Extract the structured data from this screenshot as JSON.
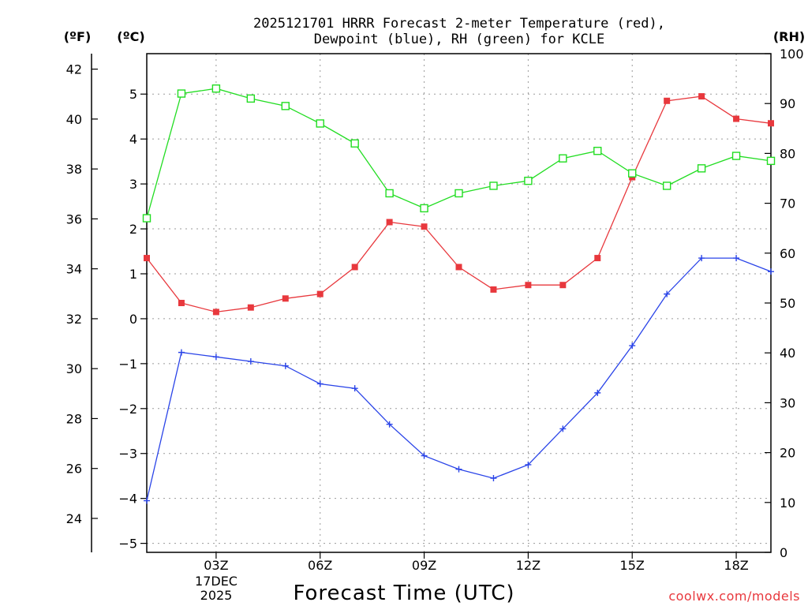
{
  "chart_data": {
    "type": "line",
    "title_line1": "2025121701 HRRR Forecast 2-meter Temperature (red),",
    "title_line2": "Dewpoint (blue), RH (green) for KCLE",
    "xlabel": "Forecast Time (UTC)",
    "credit": "coolwx.com/models",
    "date_labels": [
      "17DEC",
      "2025"
    ],
    "unit_labels": {
      "fahrenheit": "(ºF)",
      "celsius": "(ºC)",
      "rh": "(RH)"
    },
    "x_range": [
      0,
      18
    ],
    "x_ticks": [
      {
        "x": 2,
        "label": "03Z"
      },
      {
        "x": 5,
        "label": "06Z"
      },
      {
        "x": 8,
        "label": "09Z"
      },
      {
        "x": 11,
        "label": "12Z"
      },
      {
        "x": 14,
        "label": "15Z"
      },
      {
        "x": 17,
        "label": "18Z"
      }
    ],
    "celsius_range": [
      -5.2,
      5.9
    ],
    "celsius_ticks": [
      -5,
      -4,
      -3,
      -2,
      -1,
      0,
      1,
      2,
      3,
      4,
      5
    ],
    "fahrenheit_ticks": [
      24,
      26,
      28,
      30,
      32,
      34,
      36,
      38,
      40,
      42
    ],
    "rh_range": [
      0,
      100
    ],
    "rh_ticks": [
      0,
      10,
      20,
      30,
      40,
      50,
      60,
      70,
      80,
      90,
      100
    ],
    "series": [
      {
        "name": "Temperature",
        "color": "#e8383d",
        "marker": "filled-square",
        "axis": "celsius",
        "values": [
          1.35,
          0.35,
          0.15,
          0.25,
          0.45,
          0.55,
          1.15,
          2.15,
          2.05,
          1.15,
          0.65,
          0.75,
          0.75,
          1.35,
          3.15,
          4.85,
          4.95,
          4.45,
          4.35
        ]
      },
      {
        "name": "Dewpoint",
        "color": "#2a44e8",
        "marker": "plus",
        "axis": "celsius",
        "values": [
          -4.05,
          -0.75,
          -0.85,
          -0.95,
          -1.05,
          -1.45,
          -1.55,
          -2.35,
          -3.05,
          -3.35,
          -3.55,
          -3.25,
          -2.45,
          -1.65,
          -0.6,
          0.55,
          1.35,
          1.35,
          1.05
        ]
      },
      {
        "name": "RH",
        "color": "#22dd22",
        "marker": "open-square",
        "axis": "rh",
        "values": [
          67,
          92,
          93,
          91,
          89.5,
          86,
          82,
          72,
          69,
          72,
          73.5,
          74.5,
          79,
          80.5,
          76,
          73.5,
          77,
          79.5,
          78.5
        ]
      }
    ]
  }
}
